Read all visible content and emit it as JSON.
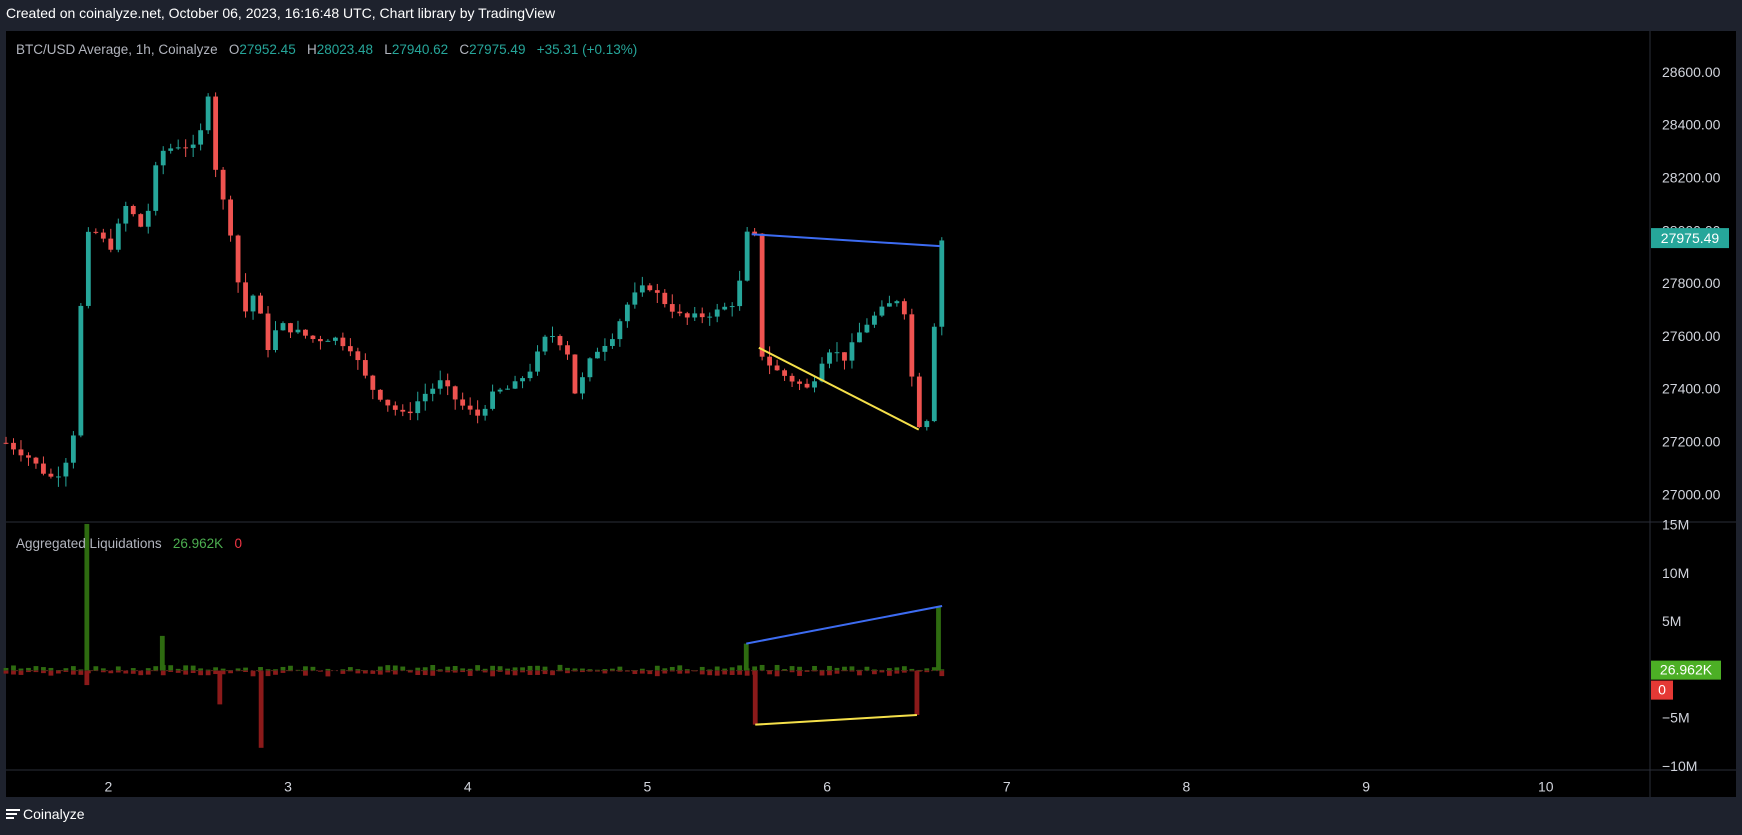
{
  "caption": "Created on coinalyze.net, October 06, 2023, 16:16:48 UTC, Chart library by TradingView",
  "footer": {
    "brand": "Coinalyze"
  },
  "colors": {
    "up": "#26a69a",
    "down": "#ef5350",
    "liq_long": "#8b1a1a",
    "liq_short": "#2e6b10",
    "blue_line": "#3d6cf2",
    "yellow_line": "#f5e04a",
    "price_tag": "#26a69a",
    "liq_pos_tag": "#4caf25",
    "liq_neg_tag": "#e53935"
  },
  "chart_data": [
    {
      "type": "candlestick",
      "title": "BTC/USD Average, 1h, Coinalyze",
      "ohlc_legend": {
        "o_label": "O",
        "o": "27952.45",
        "h_label": "H",
        "h": "28023.48",
        "l_label": "L",
        "l": "27940.62",
        "c_label": "C",
        "c": "27975.49",
        "change": "+35.31 (+0.13%)"
      },
      "last_price_label": "27975.49",
      "y_ticks": [
        "28600.00",
        "28400.00",
        "28200.00",
        "28000.00",
        "27800.00",
        "27600.00",
        "27400.00",
        "27200.00",
        "27000.00"
      ],
      "y_tick_values": [
        28600,
        28400,
        28200,
        28000,
        27800,
        27600,
        27400,
        27200,
        27000
      ],
      "ylim": [
        26900,
        28760
      ],
      "x_ticks": [
        "2",
        "3",
        "4",
        "5",
        "6",
        "7",
        "8",
        "9",
        "10"
      ],
      "x_tick_values": [
        2,
        3,
        4,
        5,
        6,
        7,
        8,
        9,
        10
      ],
      "xlim": [
        1.43,
        10.58
      ],
      "close_path": [
        [
          1.43,
          27200
        ],
        [
          1.55,
          27150
        ],
        [
          1.62,
          27100
        ],
        [
          1.7,
          27060
        ],
        [
          1.8,
          27180
        ],
        [
          1.87,
          27980
        ],
        [
          1.95,
          28000
        ],
        [
          2.0,
          27920
        ],
        [
          2.1,
          28100
        ],
        [
          2.2,
          28000
        ],
        [
          2.28,
          28300
        ],
        [
          2.4,
          28330
        ],
        [
          2.5,
          28310
        ],
        [
          2.55,
          28560
        ],
        [
          2.6,
          28220
        ],
        [
          2.68,
          28000
        ],
        [
          2.75,
          27680
        ],
        [
          2.82,
          27780
        ],
        [
          2.88,
          27550
        ],
        [
          2.95,
          27650
        ],
        [
          3.05,
          27620
        ],
        [
          3.15,
          27590
        ],
        [
          3.25,
          27600
        ],
        [
          3.35,
          27560
        ],
        [
          3.45,
          27420
        ],
        [
          3.55,
          27350
        ],
        [
          3.65,
          27300
        ],
        [
          3.75,
          27380
        ],
        [
          3.85,
          27430
        ],
        [
          3.95,
          27350
        ],
        [
          4.05,
          27300
        ],
        [
          4.15,
          27390
        ],
        [
          4.25,
          27410
        ],
        [
          4.35,
          27480
        ],
        [
          4.45,
          27620
        ],
        [
          4.55,
          27560
        ],
        [
          4.6,
          27380
        ],
        [
          4.7,
          27540
        ],
        [
          4.8,
          27600
        ],
        [
          4.9,
          27740
        ],
        [
          5.0,
          27800
        ],
        [
          5.1,
          27730
        ],
        [
          5.2,
          27670
        ],
        [
          5.3,
          27680
        ],
        [
          5.4,
          27700
        ],
        [
          5.5,
          27740
        ],
        [
          5.55,
          27990
        ],
        [
          5.6,
          27980
        ],
        [
          5.62,
          27550
        ],
        [
          5.7,
          27480
        ],
        [
          5.8,
          27440
        ],
        [
          5.9,
          27400
        ],
        [
          6.0,
          27560
        ],
        [
          6.1,
          27520
        ],
        [
          6.2,
          27640
        ],
        [
          6.3,
          27700
        ],
        [
          6.42,
          27760
        ],
        [
          6.5,
          27280
        ],
        [
          6.55,
          27250
        ],
        [
          6.6,
          27680
        ],
        [
          6.62,
          27960
        ],
        [
          6.65,
          27975
        ]
      ],
      "annotations": [
        {
          "name": "blue-trendline",
          "points": [
            [
              5.58,
              27990
            ],
            [
              6.63,
              27945
            ]
          ],
          "color": "blue_line"
        },
        {
          "name": "yellow-trendline",
          "points": [
            [
              5.62,
              27560
            ],
            [
              6.51,
              27250
            ]
          ],
          "color": "yellow_line"
        }
      ]
    },
    {
      "type": "bar",
      "title": "Aggregated Liquidations",
      "legend_values": {
        "shorts": "26.962K",
        "longs": "0"
      },
      "last_pos_label": "26.962K",
      "last_neg_label": "0",
      "y_ticks": [
        "15M",
        "10M",
        "5M",
        "−5M",
        "−10M"
      ],
      "y_tick_values": [
        15,
        10,
        5,
        -5,
        -10
      ],
      "ylim": [
        -10.3,
        15.3
      ],
      "units": "M",
      "notable_bars": [
        {
          "x": 1.88,
          "value": 15.2
        },
        {
          "x": 1.88,
          "value": -1.5
        },
        {
          "x": 2.3,
          "value": 3.6
        },
        {
          "x": 2.85,
          "value": -8.0
        },
        {
          "x": 2.62,
          "value": -3.5
        },
        {
          "x": 5.55,
          "value": 2.8
        },
        {
          "x": 5.6,
          "value": -5.6
        },
        {
          "x": 6.5,
          "value": -4.6
        },
        {
          "x": 6.62,
          "value": 6.6
        }
      ],
      "annotations": [
        {
          "name": "blue-trendline",
          "points": [
            [
              5.55,
              2.8
            ],
            [
              6.64,
              6.7
            ]
          ],
          "color": "blue_line"
        },
        {
          "name": "yellow-trendline",
          "points": [
            [
              5.6,
              -5.6
            ],
            [
              6.5,
              -4.6
            ]
          ],
          "color": "yellow_line"
        }
      ]
    }
  ]
}
